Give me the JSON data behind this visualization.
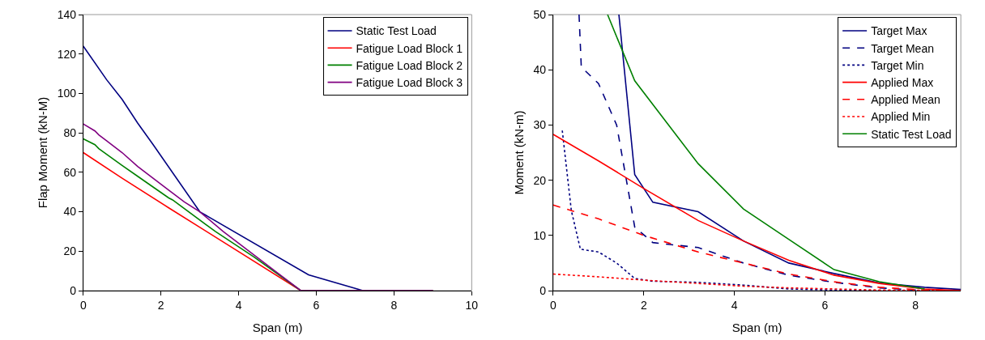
{
  "chart_data": [
    {
      "type": "line",
      "xlabel": "Span (m)",
      "ylabel": "Flap Moment (kN-M)",
      "xlim": [
        0,
        10
      ],
      "ylim": [
        0,
        140
      ],
      "xticks": [
        0,
        2,
        4,
        6,
        8,
        10
      ],
      "yticks": [
        0,
        20,
        40,
        60,
        80,
        100,
        120,
        140
      ],
      "grid": false,
      "legend": "top right",
      "series": [
        {
          "name": "Static Test Load",
          "color": "#000080",
          "line_style": "solid",
          "x": [
            0,
            0.6,
            1,
            1.4,
            1.8,
            3,
            5.8,
            7.2,
            9
          ],
          "values": [
            124,
            107,
            97,
            85,
            74,
            40,
            8,
            0,
            0
          ]
        },
        {
          "name": "Fatigue Load Block 1",
          "color": "#ff0000",
          "line_style": "solid",
          "x": [
            0,
            1,
            2.2,
            5.6,
            9
          ],
          "values": [
            70,
            57,
            42,
            0,
            0
          ]
        },
        {
          "name": "Fatigue Load Block 2",
          "color": "#008000",
          "line_style": "solid",
          "x": [
            0,
            0.3,
            0.4,
            1,
            1.4,
            2.2,
            2.3,
            3.4,
            4.4,
            5.6,
            9
          ],
          "values": [
            77,
            74,
            72,
            63.5,
            58,
            47,
            46,
            30,
            17,
            0,
            0
          ]
        },
        {
          "name": "Fatigue Load Block 3",
          "color": "#800080",
          "line_style": "solid",
          "x": [
            0,
            0.3,
            0.4,
            0.6,
            1,
            1.4,
            2.2,
            2.6,
            3,
            3.6,
            4.4,
            5,
            5.6,
            9
          ],
          "values": [
            84.5,
            81,
            79,
            76,
            70,
            63,
            51,
            45,
            40,
            30,
            18,
            9,
            0,
            0
          ]
        }
      ]
    },
    {
      "type": "line",
      "xlabel": "Span (m)",
      "ylabel": "Moment (kN-m)",
      "xlim": [
        0,
        9
      ],
      "ylim": [
        0,
        50
      ],
      "xticks": [
        0,
        2,
        4,
        6,
        8
      ],
      "yticks": [
        0,
        10,
        20,
        30,
        40,
        50
      ],
      "grid": false,
      "legend": "top right",
      "series": [
        {
          "name": "Target Max",
          "color": "#000080",
          "line_style": "solid",
          "x": [
            1.45,
            1.8,
            2.2,
            3.2,
            4.2,
            5.2,
            6.2,
            7.2,
            8.2,
            9
          ],
          "values": [
            50,
            21,
            16,
            14.3,
            9,
            5,
            3.1,
            1.4,
            0.6,
            0.2
          ]
        },
        {
          "name": "Target Mean",
          "color": "#000080",
          "line_style": "dashed",
          "x": [
            0.57,
            0.62,
            1,
            1.4,
            1.8,
            2.2,
            3.2,
            4.2,
            5.2,
            6.2,
            7.2,
            8.2,
            9
          ],
          "values": [
            50,
            40.5,
            37.5,
            30,
            11.5,
            8.7,
            7.8,
            5,
            2.8,
            1.5,
            0.5,
            0,
            0
          ]
        },
        {
          "name": "Target Min",
          "color": "#000080",
          "line_style": "dotted",
          "x": [
            0.2,
            0.4,
            0.6,
            1,
            1.4,
            1.8,
            2.2,
            3.2,
            4.2,
            5.2,
            6.2,
            7.2,
            9
          ],
          "values": [
            29,
            14.5,
            7.5,
            7,
            5,
            2.2,
            1.7,
            1.5,
            1,
            0.3,
            0.1,
            0,
            0
          ]
        },
        {
          "name": "Applied Max",
          "color": "#ff0000",
          "line_style": "solid",
          "x": [
            0,
            1,
            2,
            3.2,
            4.2,
            5.2,
            6.2,
            7.2,
            8.2,
            9
          ],
          "values": [
            28.3,
            23.5,
            18.5,
            12.7,
            9,
            5.5,
            2.8,
            1.3,
            0.3,
            0
          ]
        },
        {
          "name": "Applied Mean",
          "color": "#ff0000",
          "line_style": "dashed",
          "x": [
            0,
            1,
            2,
            3.2,
            4.2,
            5.2,
            6.2,
            7.2,
            8.2,
            9
          ],
          "values": [
            15.5,
            13,
            10,
            7,
            5,
            3,
            1.6,
            0.6,
            0.1,
            0
          ]
        },
        {
          "name": "Applied Min",
          "color": "#ff0000",
          "line_style": "dotted",
          "x": [
            0,
            1,
            2,
            3.2,
            4.2,
            5.2,
            6.2,
            7.2,
            9
          ],
          "values": [
            3,
            2.5,
            1.9,
            1.3,
            0.8,
            0.5,
            0.3,
            0.1,
            0
          ]
        },
        {
          "name": "Static Test Load",
          "color": "#008000",
          "line_style": "solid",
          "x": [
            1.2,
            1.8,
            3.2,
            4.2,
            5.2,
            6.2,
            7.2,
            8.2
          ],
          "values": [
            50,
            38,
            23,
            14.8,
            9.3,
            3.8,
            1.6,
            0.3
          ]
        }
      ]
    }
  ]
}
